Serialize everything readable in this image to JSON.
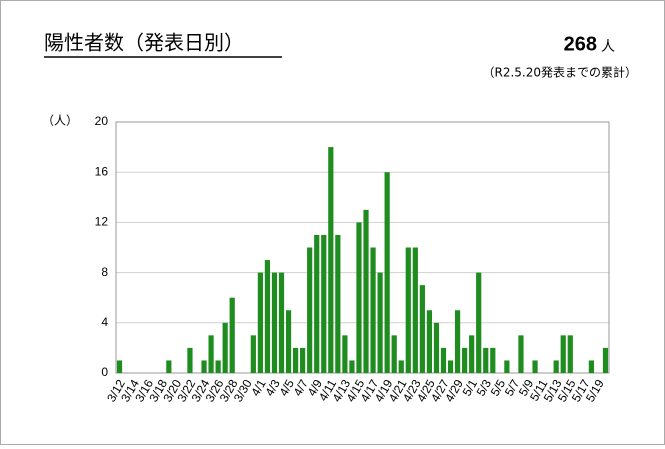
{
  "chart_data": {
    "type": "bar",
    "title": "陽性者数（発表日別）",
    "total": "268",
    "total_unit": "人",
    "note": "（R2.5.20発表までの累計）",
    "y_axis_label": "（人）",
    "categories": [
      "3/12",
      null,
      "3/14",
      null,
      "3/16",
      null,
      "3/18",
      null,
      "3/20",
      null,
      "3/22",
      null,
      "3/24",
      null,
      "3/26",
      null,
      "3/28",
      null,
      "3/30",
      null,
      "4/1",
      null,
      "4/3",
      null,
      "4/5",
      null,
      "4/7",
      null,
      "4/9",
      null,
      "4/11",
      null,
      "4/13",
      null,
      "4/15",
      null,
      "4/17",
      null,
      "4/19",
      null,
      "4/21",
      null,
      "4/23",
      null,
      "4/25",
      null,
      "4/27",
      null,
      "4/29",
      null,
      "5/1",
      null,
      "5/3",
      null,
      "5/5",
      null,
      "5/7",
      null,
      "5/9",
      null,
      "5/11",
      null,
      "5/13",
      null,
      "5/15",
      null,
      "5/17",
      null,
      "5/19",
      null
    ],
    "values": [
      1,
      0,
      0,
      0,
      0,
      0,
      0,
      1,
      0,
      0,
      2,
      0,
      1,
      3,
      1,
      4,
      6,
      0,
      0,
      3,
      8,
      9,
      8,
      8,
      5,
      2,
      2,
      10,
      11,
      11,
      18,
      11,
      3,
      1,
      12,
      13,
      10,
      8,
      16,
      3,
      1,
      10,
      10,
      7,
      5,
      4,
      2,
      1,
      5,
      2,
      3,
      8,
      2,
      2,
      0,
      1,
      0,
      3,
      0,
      1,
      0,
      0,
      1,
      3,
      3,
      0,
      0,
      1,
      0,
      2
    ],
    "color": "#1f8c1f",
    "ylim": [
      0,
      20
    ],
    "yticks": [
      0,
      4,
      8,
      12,
      16,
      20
    ],
    "grid": true
  }
}
